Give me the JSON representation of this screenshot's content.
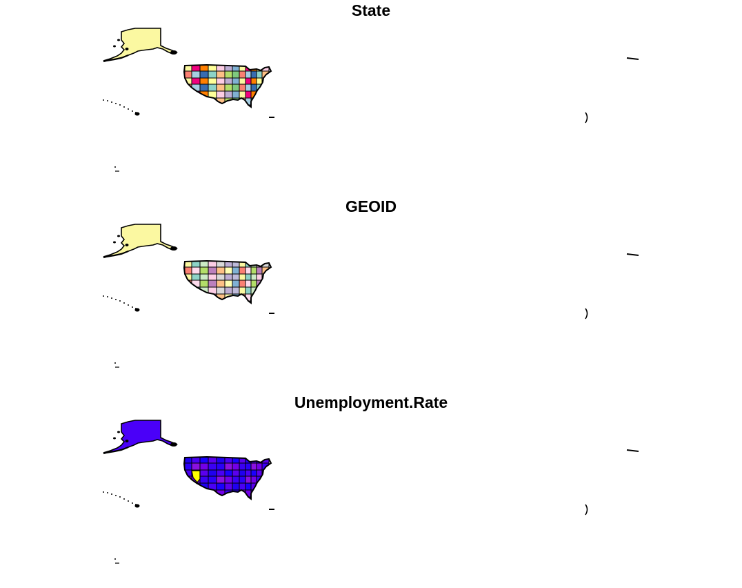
{
  "maps": [
    {
      "title": "State",
      "palette": [
        "#fbf8a1",
        "#7fc97f",
        "#beaed4",
        "#fdc086",
        "#ffff99",
        "#386cb0",
        "#f0027f",
        "#fb8072",
        "#80b1d3",
        "#b3de69",
        "#fccde5",
        "#8dd3c7",
        "#ff7f00",
        "#a6cee3"
      ],
      "alaska_color": "#fbf8a1",
      "hawaii_color": "#000000",
      "outlier_color": null
    },
    {
      "title": "GEOID",
      "palette": [
        "#fbf8a1",
        "#80b1d3",
        "#beaed4",
        "#fdc086",
        "#fccde5",
        "#b3de69",
        "#8dd3c7",
        "#fb8072",
        "#bebada",
        "#ffffb3",
        "#d9d9d9",
        "#bc80bd",
        "#ccebc5",
        "#fddaec"
      ],
      "alaska_color": "#fbf8a1",
      "hawaii_color": "#000000",
      "outlier_color": null
    },
    {
      "title": "Unemployment.Rate",
      "palette": [
        "#2000f0",
        "#3a00f4",
        "#5a00ef",
        "#7200e8",
        "#1a00ff",
        "#8a10e0",
        "#4a00f5",
        "#2a00f8"
      ],
      "alaska_color": "#4a00f8",
      "hawaii_color": "#000000",
      "outlier_color": "#ffff00"
    }
  ]
}
